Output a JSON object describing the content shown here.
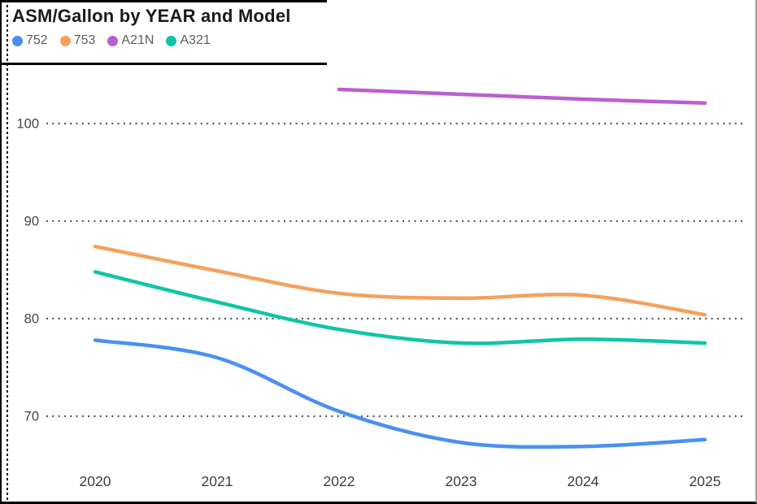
{
  "frame": {
    "border_color": "#000000",
    "right_border_color": "#9e9e9e",
    "header_rule_color": "#000000"
  },
  "chart_data": {
    "type": "line",
    "title": "ASM/Gallon by YEAR and Model",
    "categories": [
      "2020",
      "2021",
      "2022",
      "2023",
      "2024",
      "2025"
    ],
    "series": [
      {
        "name": "752",
        "color": "#4A90F2",
        "values": [
          77.8,
          76.0,
          70.5,
          67.3,
          66.9,
          67.6
        ]
      },
      {
        "name": "753",
        "color": "#F5A15C",
        "values": [
          87.4,
          84.9,
          82.6,
          82.1,
          82.4,
          80.4
        ]
      },
      {
        "name": "A21N",
        "color": "#BA5FD1",
        "values": [
          null,
          null,
          103.5,
          103.0,
          102.5,
          102.1
        ]
      },
      {
        "name": "A321",
        "color": "#0FC5A7",
        "values": [
          84.8,
          81.7,
          78.9,
          77.5,
          77.9,
          77.5
        ]
      }
    ],
    "yticks": [
      70,
      80,
      90,
      100
    ],
    "ylim": [
      64,
      106.5
    ],
    "xlabel": "",
    "ylabel": "",
    "grid": "horizontal-dotted",
    "legend_position": "top-left",
    "title_color": "#1b1b1b",
    "legend_text_color": "#5d5d5d",
    "axis_text_color": "#454545",
    "x_axis_text_color": "#3c3c3c",
    "gridline_color": "#575757"
  }
}
